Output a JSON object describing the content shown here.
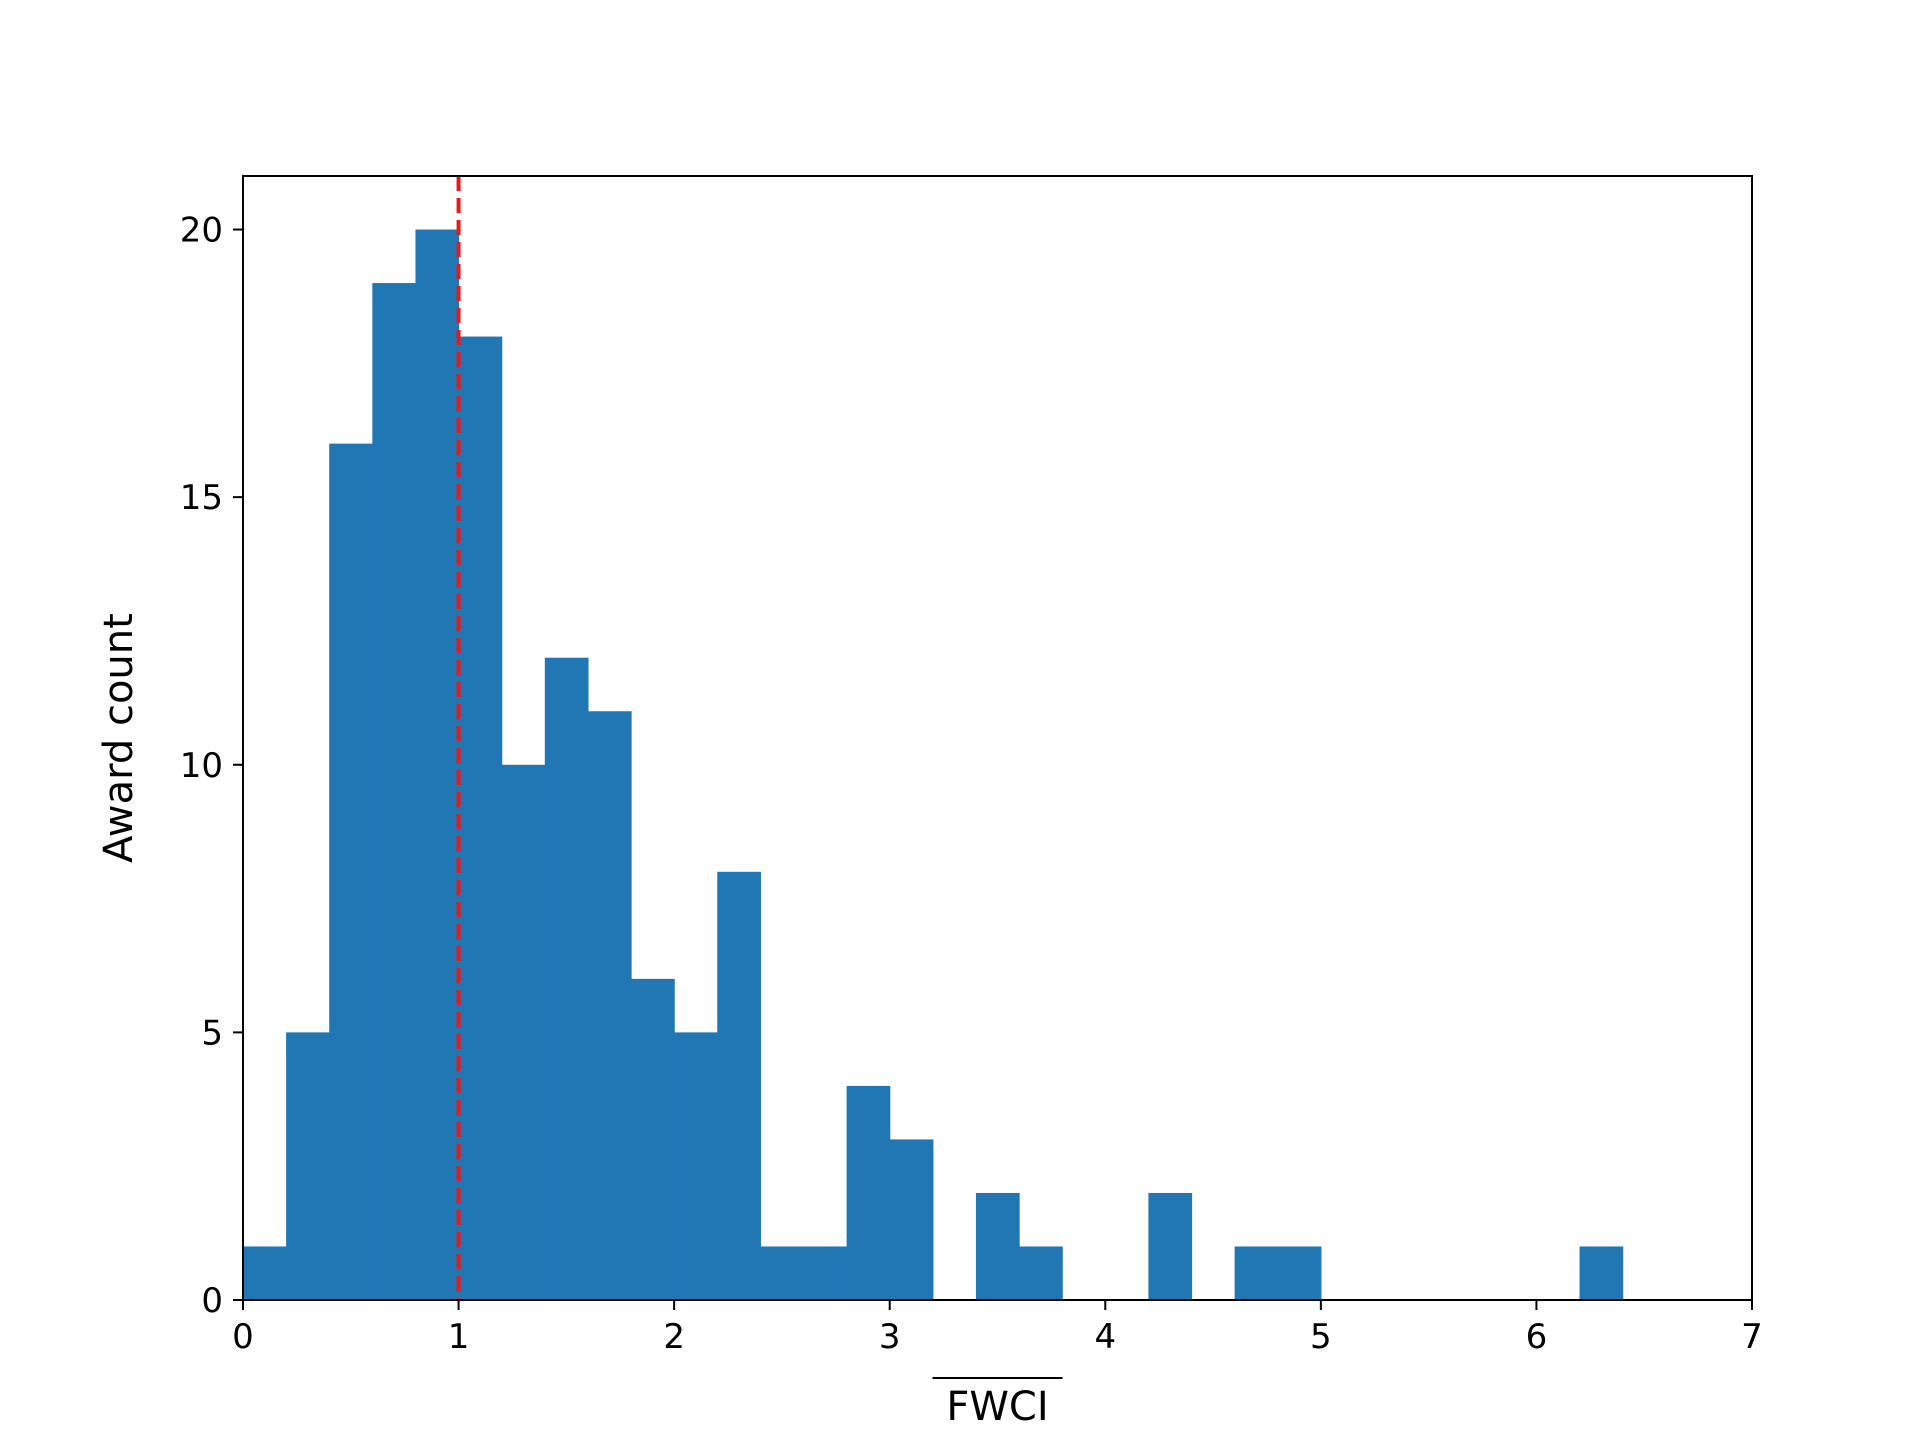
{
  "chart_data": {
    "type": "bar",
    "xlabel": "FWCI",
    "xlabel_overline": true,
    "ylabel": "Award count",
    "xlim": [
      0,
      7
    ],
    "ylim": [
      0,
      21
    ],
    "xticks": [
      0,
      1,
      2,
      3,
      4,
      5,
      6,
      7
    ],
    "yticks": [
      0,
      5,
      10,
      15,
      20
    ],
    "grid": false,
    "bin_width": 0.2,
    "bins": [
      {
        "x0": 0.0,
        "x1": 0.2,
        "count": 1
      },
      {
        "x0": 0.2,
        "x1": 0.4,
        "count": 5
      },
      {
        "x0": 0.4,
        "x1": 0.6,
        "count": 16
      },
      {
        "x0": 0.6,
        "x1": 0.8,
        "count": 19
      },
      {
        "x0": 0.8,
        "x1": 1.0,
        "count": 20
      },
      {
        "x0": 1.0,
        "x1": 1.2,
        "count": 18
      },
      {
        "x0": 1.2,
        "x1": 1.4,
        "count": 10
      },
      {
        "x0": 1.4,
        "x1": 1.6,
        "count": 12
      },
      {
        "x0": 1.6,
        "x1": 1.8,
        "count": 11
      },
      {
        "x0": 1.8,
        "x1": 2.0,
        "count": 6
      },
      {
        "x0": 2.0,
        "x1": 2.2,
        "count": 5
      },
      {
        "x0": 2.2,
        "x1": 2.4,
        "count": 8
      },
      {
        "x0": 2.4,
        "x1": 2.6,
        "count": 1
      },
      {
        "x0": 2.6,
        "x1": 2.8,
        "count": 1
      },
      {
        "x0": 2.8,
        "x1": 3.0,
        "count": 4
      },
      {
        "x0": 3.0,
        "x1": 3.2,
        "count": 3
      },
      {
        "x0": 3.2,
        "x1": 3.4,
        "count": 0
      },
      {
        "x0": 3.4,
        "x1": 3.6,
        "count": 2
      },
      {
        "x0": 3.6,
        "x1": 3.8,
        "count": 1
      },
      {
        "x0": 3.8,
        "x1": 4.0,
        "count": 0
      },
      {
        "x0": 4.0,
        "x1": 4.2,
        "count": 0
      },
      {
        "x0": 4.2,
        "x1": 4.4,
        "count": 2
      },
      {
        "x0": 4.4,
        "x1": 4.6,
        "count": 0
      },
      {
        "x0": 4.6,
        "x1": 4.8,
        "count": 1
      },
      {
        "x0": 4.8,
        "x1": 5.0,
        "count": 1
      },
      {
        "x0": 5.0,
        "x1": 5.2,
        "count": 0
      },
      {
        "x0": 5.2,
        "x1": 5.4,
        "count": 0
      },
      {
        "x0": 5.4,
        "x1": 5.6,
        "count": 0
      },
      {
        "x0": 5.6,
        "x1": 5.8,
        "count": 0
      },
      {
        "x0": 5.8,
        "x1": 6.0,
        "count": 0
      },
      {
        "x0": 6.0,
        "x1": 6.2,
        "count": 0
      },
      {
        "x0": 6.2,
        "x1": 6.4,
        "count": 1
      }
    ],
    "reference_line": {
      "x": 1,
      "style": "dashed"
    },
    "colors": {
      "bar": "#2077b4",
      "reference_line": "#e8191a",
      "axis": "#000000"
    }
  }
}
